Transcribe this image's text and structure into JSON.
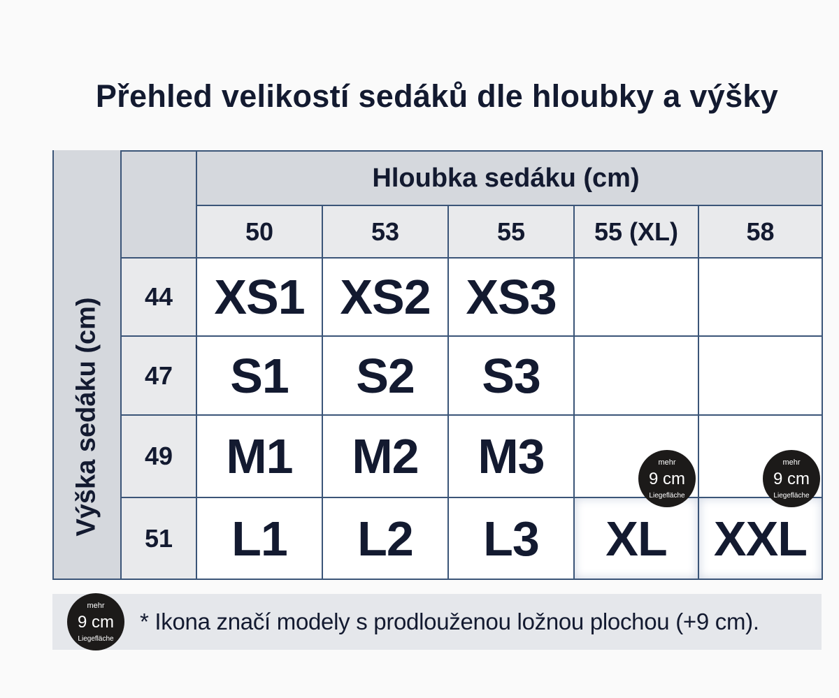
{
  "title": "Přehled velikostí sedáků dle hloubky a výšky",
  "table": {
    "column_group_label": "Hloubka sedáku (cm)",
    "row_group_label": "Výška sedáku (cm)",
    "columns": [
      "50",
      "53",
      "55",
      "55 (XL)",
      "58"
    ],
    "rows": [
      {
        "height": "44",
        "cells": [
          "XS1",
          "XS2",
          "XS3",
          "",
          ""
        ]
      },
      {
        "height": "47",
        "cells": [
          "S1",
          "S2",
          "S3",
          "",
          ""
        ]
      },
      {
        "height": "49",
        "cells": [
          "M1",
          "M2",
          "M3",
          "",
          ""
        ]
      },
      {
        "height": "51",
        "cells": [
          "L1",
          "L2",
          "L3",
          "XL",
          "XXL"
        ]
      }
    ]
  },
  "badge": {
    "top": "mehr",
    "main": "9 cm",
    "bottom": "Liegefläche",
    "icon": "extended-bed-badge-icon",
    "color": "#1c1a19"
  },
  "footer": {
    "note": "* Ikona značí modely s prodlouženou ložnou plochou (+9 cm)."
  },
  "colors": {
    "text": "#131a30",
    "border": "#3b5578",
    "header_bg": "#d5d8dd",
    "subheader_bg": "#e9eaec"
  }
}
